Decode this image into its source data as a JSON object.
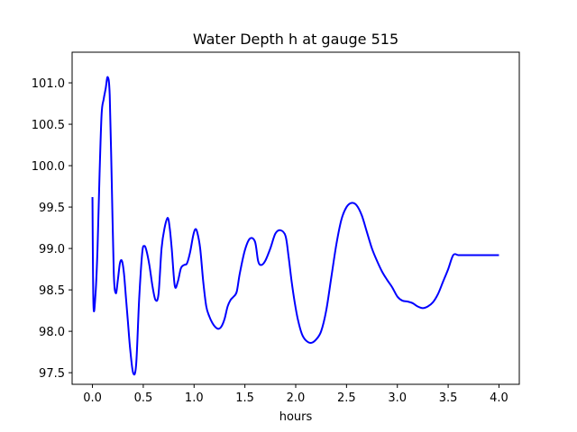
{
  "chart_data": {
    "type": "line",
    "title": "Water Depth h at gauge 515",
    "xlabel": "hours",
    "ylabel": "",
    "xlim": [
      -0.2,
      4.2
    ],
    "ylim": [
      97.36,
      101.37
    ],
    "xticks": [
      0.0,
      0.5,
      1.0,
      1.5,
      2.0,
      2.5,
      3.0,
      3.5,
      4.0
    ],
    "xtick_labels": [
      "0.0",
      "0.5",
      "1.0",
      "1.5",
      "2.0",
      "2.5",
      "3.0",
      "3.5",
      "4.0"
    ],
    "yticks": [
      97.5,
      98.0,
      98.5,
      99.0,
      99.5,
      100.0,
      100.5,
      101.0
    ],
    "ytick_labels": [
      "97.5",
      "98.0",
      "98.5",
      "99.0",
      "99.5",
      "100.0",
      "100.5",
      "101.0"
    ],
    "grid": false,
    "series": [
      {
        "color": "#0000ff",
        "x": [
          0.0,
          0.01,
          0.03,
          0.05,
          0.07,
          0.09,
          0.11,
          0.13,
          0.15,
          0.17,
          0.19,
          0.21,
          0.23,
          0.25,
          0.27,
          0.29,
          0.31,
          0.33,
          0.35,
          0.37,
          0.4,
          0.43,
          0.46,
          0.49,
          0.51,
          0.53,
          0.56,
          0.59,
          0.62,
          0.65,
          0.68,
          0.71,
          0.74,
          0.76,
          0.78,
          0.81,
          0.84,
          0.87,
          0.9,
          0.93,
          0.96,
          0.99,
          1.01,
          1.03,
          1.06,
          1.09,
          1.12,
          1.15,
          1.18,
          1.21,
          1.24,
          1.27,
          1.3,
          1.33,
          1.36,
          1.39,
          1.42,
          1.45,
          1.5,
          1.55,
          1.6,
          1.63,
          1.66,
          1.7,
          1.75,
          1.8,
          1.85,
          1.9,
          1.93,
          1.96,
          1.99,
          2.02,
          2.06,
          2.1,
          2.15,
          2.2,
          2.25,
          2.3,
          2.35,
          2.4,
          2.45,
          2.5,
          2.55,
          2.6,
          2.65,
          2.7,
          2.75,
          2.8,
          2.85,
          2.9,
          2.95,
          3.0,
          3.05,
          3.1,
          3.15,
          3.2,
          3.25,
          3.3,
          3.35,
          3.4,
          3.45,
          3.5,
          3.55,
          3.6,
          3.65,
          3.7,
          3.75,
          3.8,
          3.85,
          3.9,
          3.95,
          4.0
        ],
        "values": [
          99.62,
          98.32,
          98.45,
          99.0,
          99.9,
          100.62,
          100.8,
          100.93,
          101.07,
          100.85,
          99.8,
          98.7,
          98.46,
          98.62,
          98.82,
          98.85,
          98.7,
          98.4,
          98.1,
          97.8,
          97.5,
          97.6,
          98.4,
          98.95,
          99.03,
          98.98,
          98.8,
          98.55,
          98.38,
          98.45,
          99.0,
          99.25,
          99.37,
          99.25,
          99.0,
          98.55,
          98.6,
          98.76,
          98.8,
          98.82,
          98.95,
          99.15,
          99.23,
          99.2,
          99.0,
          98.6,
          98.3,
          98.18,
          98.1,
          98.05,
          98.03,
          98.06,
          98.15,
          98.3,
          98.38,
          98.42,
          98.48,
          98.7,
          98.98,
          99.12,
          99.08,
          98.85,
          98.8,
          98.85,
          99.0,
          99.18,
          99.22,
          99.15,
          98.9,
          98.6,
          98.35,
          98.15,
          97.97,
          97.89,
          97.86,
          97.9,
          98.0,
          98.25,
          98.65,
          99.05,
          99.35,
          99.5,
          99.55,
          99.52,
          99.4,
          99.2,
          99.0,
          98.85,
          98.72,
          98.62,
          98.53,
          98.42,
          98.37,
          98.36,
          98.34,
          98.3,
          98.28,
          98.3,
          98.35,
          98.45,
          98.6,
          98.75,
          98.92,
          98.92,
          98.92,
          98.92,
          98.92,
          98.92,
          98.92,
          98.92,
          98.92,
          98.92
        ]
      }
    ]
  }
}
